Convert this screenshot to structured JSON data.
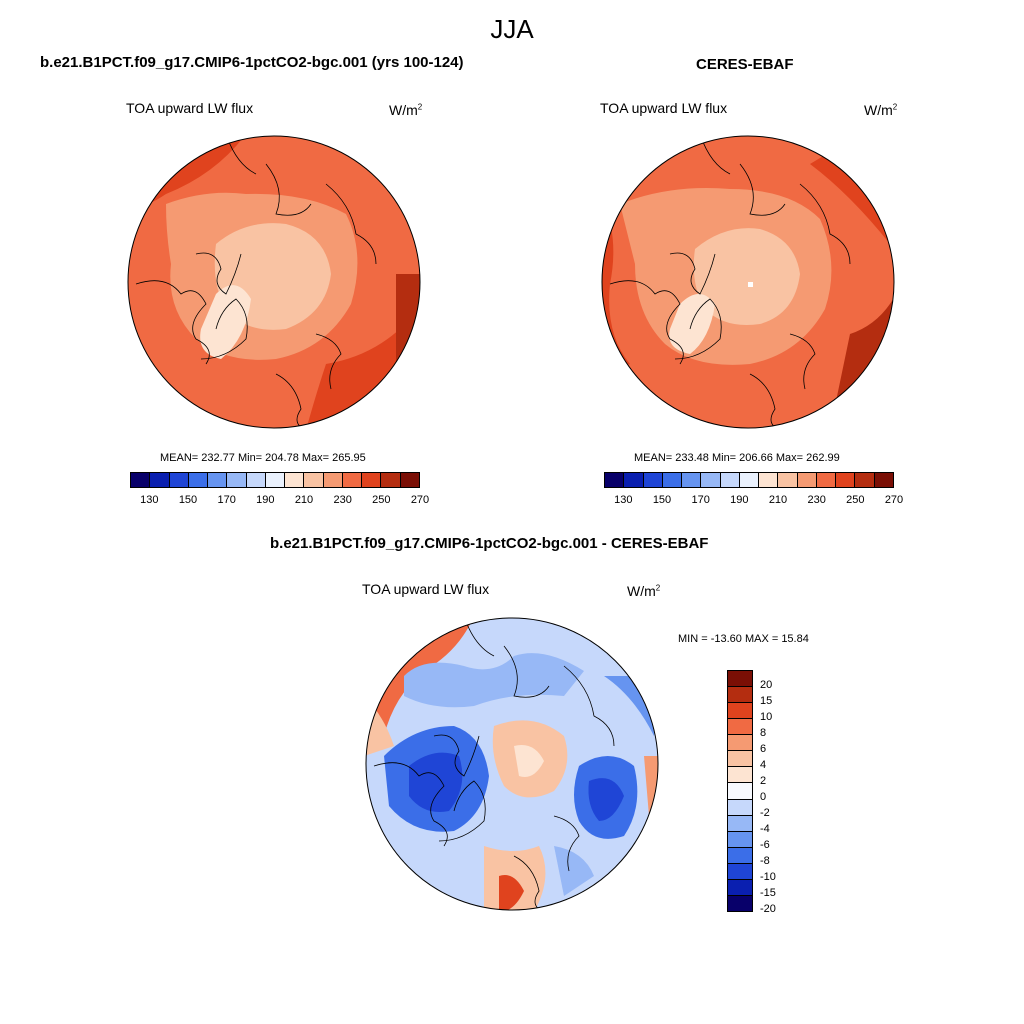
{
  "season": "JJA",
  "panels": [
    {
      "case": "b.e21.B1PCT.f09_g17.CMIP6-1pctCO2-bgc.001 (yrs 100-124)",
      "variable": "TOA upward LW flux",
      "units": "W/m",
      "units_exp": "2",
      "stats": "MEAN= 232.77  Min= 204.78  Max= 265.95",
      "mean": 232.77,
      "min": 204.78,
      "max": 265.95
    },
    {
      "case": "CERES-EBAF",
      "variable": "TOA upward LW flux",
      "units": "W/m",
      "units_exp": "2",
      "stats": "MEAN= 233.48  Min= 206.66  Max= 262.99",
      "mean": 233.48,
      "min": 206.66,
      "max": 262.99
    },
    {
      "case": "b.e21.B1PCT.f09_g17.CMIP6-1pctCO2-bgc.001 - CERES-EBAF",
      "variable": "TOA upward LW flux",
      "units": "W/m",
      "units_exp": "2",
      "stats": "MIN = -13.60 MAX =  15.84",
      "min": -13.6,
      "max": 15.84
    }
  ],
  "abs_colorbar": {
    "colors": [
      "#08006a",
      "#0a1fb0",
      "#1f45d6",
      "#3b6ee8",
      "#6694f0",
      "#97b8f6",
      "#c6d8fb",
      "#eaf1fd",
      "#fde4d2",
      "#f9c3a3",
      "#f59a72",
      "#f06a43",
      "#e0431e",
      "#b42d10",
      "#7a0f05"
    ],
    "tick_labels": [
      "130",
      "150",
      "170",
      "190",
      "210",
      "230",
      "250",
      "270"
    ]
  },
  "diff_colorbar": {
    "colors": [
      "#7a0f05",
      "#b42d10",
      "#e0431e",
      "#f06a43",
      "#f59a72",
      "#f9c3a3",
      "#fde4d2",
      "#f7f9fe",
      "#c6d8fb",
      "#97b8f6",
      "#6694f0",
      "#3b6ee8",
      "#1f45d6",
      "#0a1fb0",
      "#08006a"
    ],
    "tick_labels": [
      "20",
      "15",
      "10",
      "8",
      "6",
      "4",
      "2",
      "0",
      "-2",
      "-4",
      "-6",
      "-8",
      "-10",
      "-15",
      "-20"
    ]
  }
}
